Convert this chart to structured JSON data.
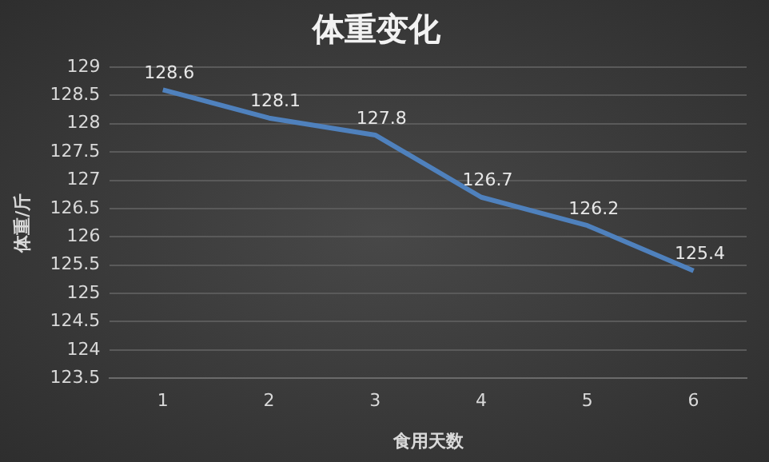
{
  "chart_data": {
    "type": "line",
    "title": "体重变化",
    "xlabel": "食用天数",
    "ylabel": "体重/斤",
    "categories": [
      "1",
      "2",
      "3",
      "4",
      "5",
      "6"
    ],
    "series": [
      {
        "color": "#4f81bd",
        "values": [
          128.6,
          128.1,
          127.8,
          126.7,
          126.2,
          125.4
        ]
      }
    ],
    "ylim": [
      123.5,
      129
    ],
    "yticks": [
      123.5,
      124,
      124.5,
      125,
      125.5,
      126,
      126.5,
      127,
      127.5,
      128,
      128.5,
      129
    ],
    "grid": "y",
    "legend": false,
    "marker": "none",
    "line_style": "solid",
    "data_labels": true
  }
}
